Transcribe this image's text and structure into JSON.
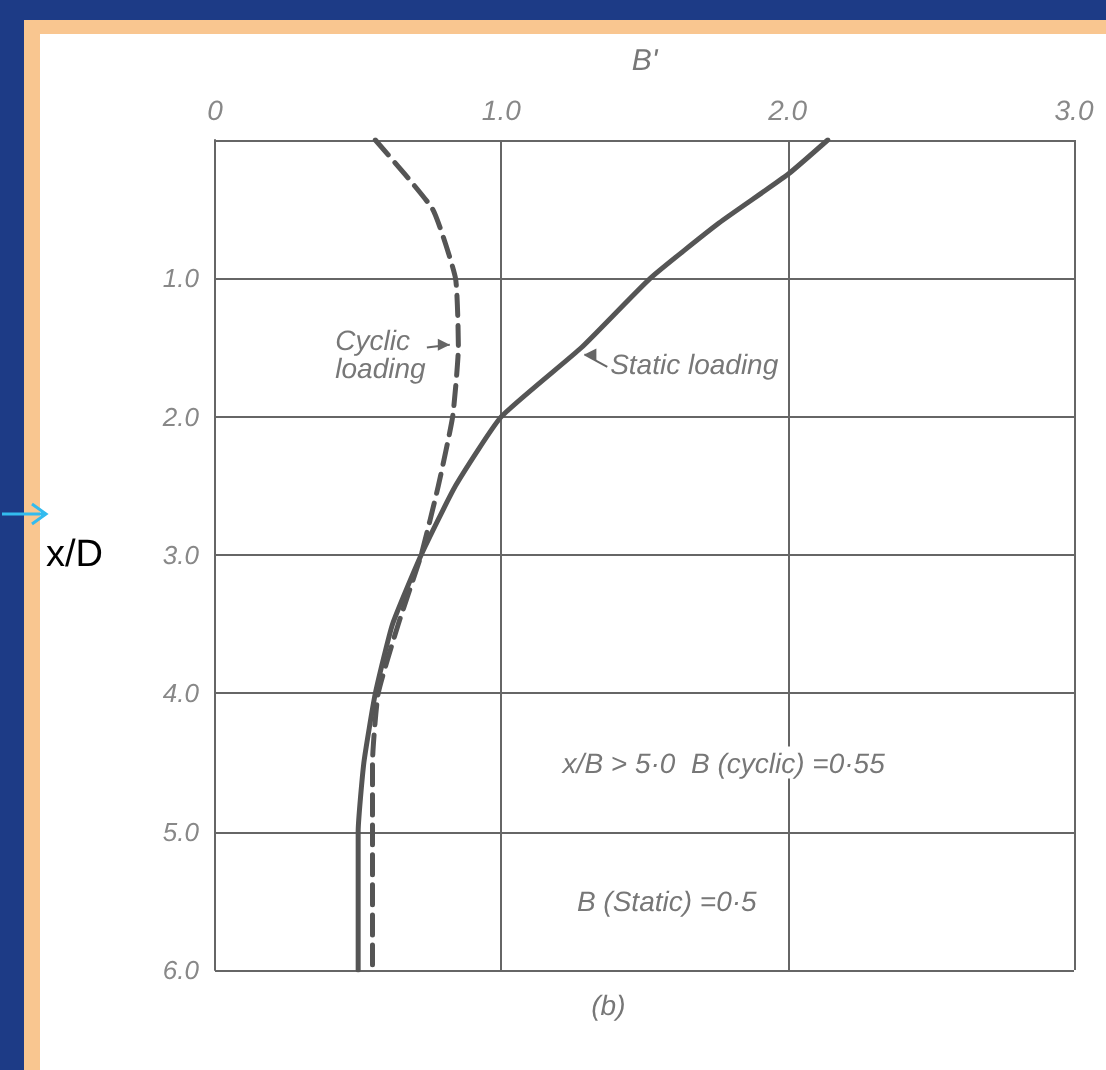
{
  "chart_data": {
    "type": "line",
    "xlabel": "B'",
    "ylabel": "x/D",
    "xlim": [
      0,
      3
    ],
    "xticks": [
      0,
      {
        "value": 1,
        "label": "1.0"
      },
      {
        "value": 2,
        "label": "2.0"
      },
      {
        "value": 3,
        "label": "3.0"
      }
    ],
    "ylim": [
      6,
      0
    ],
    "yticks": [
      {
        "value": 0,
        "label": null
      },
      {
        "value": 1,
        "label": "1.0"
      },
      {
        "value": 2,
        "label": "2.0"
      },
      {
        "value": 3,
        "label": "3.0"
      },
      {
        "value": 4,
        "label": "4.0"
      },
      {
        "value": 5,
        "label": "5.0"
      },
      {
        "value": 6,
        "label": "6.0"
      }
    ],
    "grid": true,
    "marker": "none",
    "series": [
      {
        "name": "Cyclic loading",
        "color": "#555555",
        "line_style": "dashed",
        "x": [
          0.56,
          0.76,
          0.84,
          0.85,
          0.83,
          0.78,
          0.72,
          0.64,
          0.57,
          0.55,
          0.55,
          0.55
        ],
        "values": [
          0,
          0.5,
          1,
          1.5,
          2,
          2.5,
          3,
          3.5,
          4,
          4.5,
          5,
          6
        ]
      },
      {
        "name": "Static loading",
        "color": "#555555",
        "line_style": "solid",
        "x": [
          2.14,
          2.0,
          1.76,
          1.52,
          1.28,
          1.0,
          0.84,
          0.72,
          0.62,
          0.56,
          0.52,
          0.5,
          0.5
        ],
        "values": [
          0,
          0.25,
          0.6,
          1,
          1.5,
          2,
          2.5,
          3,
          3.5,
          4,
          4.5,
          5,
          6
        ]
      }
    ],
    "annotations": [
      "x/B > 5·0  B (cyclic) =0·55",
      "B (Static) =0·5",
      "(b)"
    ]
  }
}
